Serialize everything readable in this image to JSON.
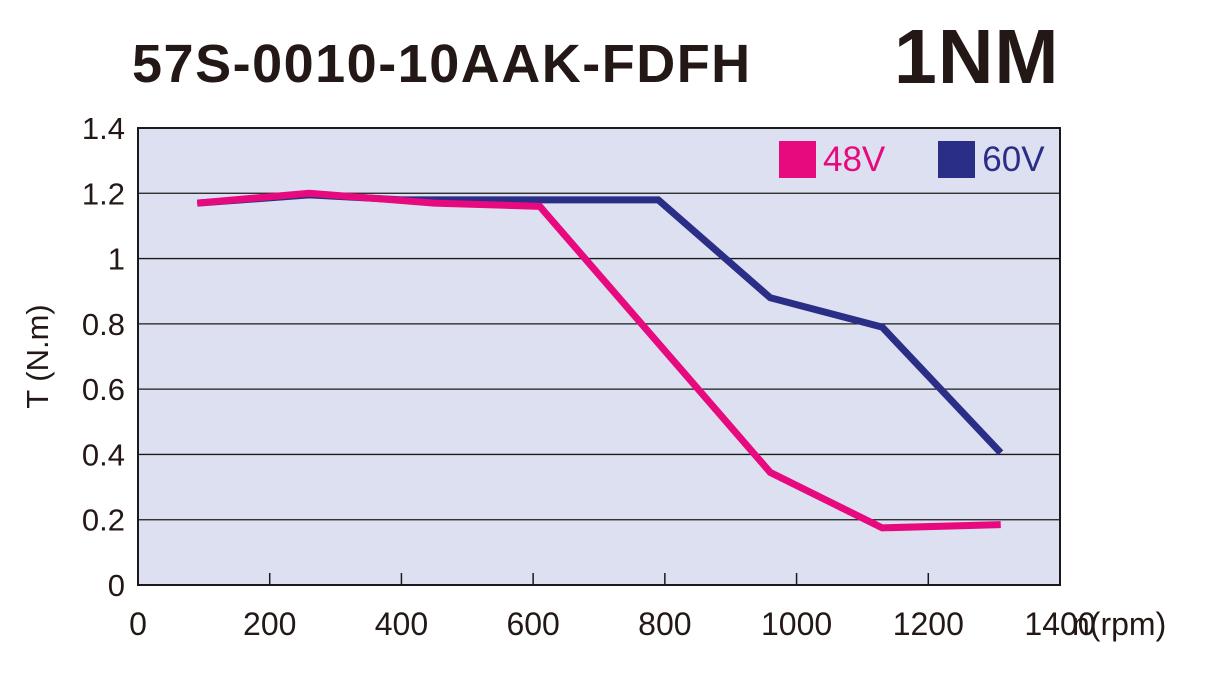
{
  "header": {
    "model": "57S-0010-10AAK-FDFH",
    "rating": "1NM"
  },
  "chart_data": {
    "type": "line",
    "title": "57S-0010-10AAK-FDFH",
    "subtitle": "1NM",
    "xlabel": "n(rpm)",
    "ylabel": "T (N.m)",
    "xlim": [
      0,
      1400
    ],
    "ylim": [
      0,
      1.4
    ],
    "xticks": [
      0,
      200,
      400,
      600,
      800,
      1000,
      1200,
      1400
    ],
    "xtick_labels": [
      "0",
      "200",
      "400",
      "600",
      "800",
      "1000",
      "1200",
      "1400"
    ],
    "yticks": [
      0,
      0.2,
      0.4,
      0.6,
      0.8,
      1,
      1.2,
      1.4
    ],
    "ytick_labels": [
      "0",
      "0.2",
      "0.4",
      "0.6",
      "0.8",
      "1",
      "1.2",
      "1.4"
    ],
    "grid": "horizontal-only",
    "legend_position": "top-right-inside",
    "plot_bg": "#dde0f0",
    "grid_color": "#1a1a1a",
    "border_color": "#1a1a1a",
    "text_color": "#231815",
    "line_width": 7,
    "series": [
      {
        "name": "48V",
        "color": "#e60a7e",
        "points": [
          [
            90,
            1.17
          ],
          [
            260,
            1.2
          ],
          [
            450,
            1.17
          ],
          [
            610,
            1.16
          ],
          [
            960,
            0.345
          ],
          [
            1130,
            0.175
          ],
          [
            1310,
            0.185
          ]
        ]
      },
      {
        "name": "60V",
        "color": "#2a2e86",
        "points": [
          [
            90,
            1.17
          ],
          [
            260,
            1.195
          ],
          [
            400,
            1.18
          ],
          [
            790,
            1.18
          ],
          [
            960,
            0.88
          ],
          [
            1130,
            0.79
          ],
          [
            1310,
            0.405
          ]
        ]
      }
    ]
  }
}
